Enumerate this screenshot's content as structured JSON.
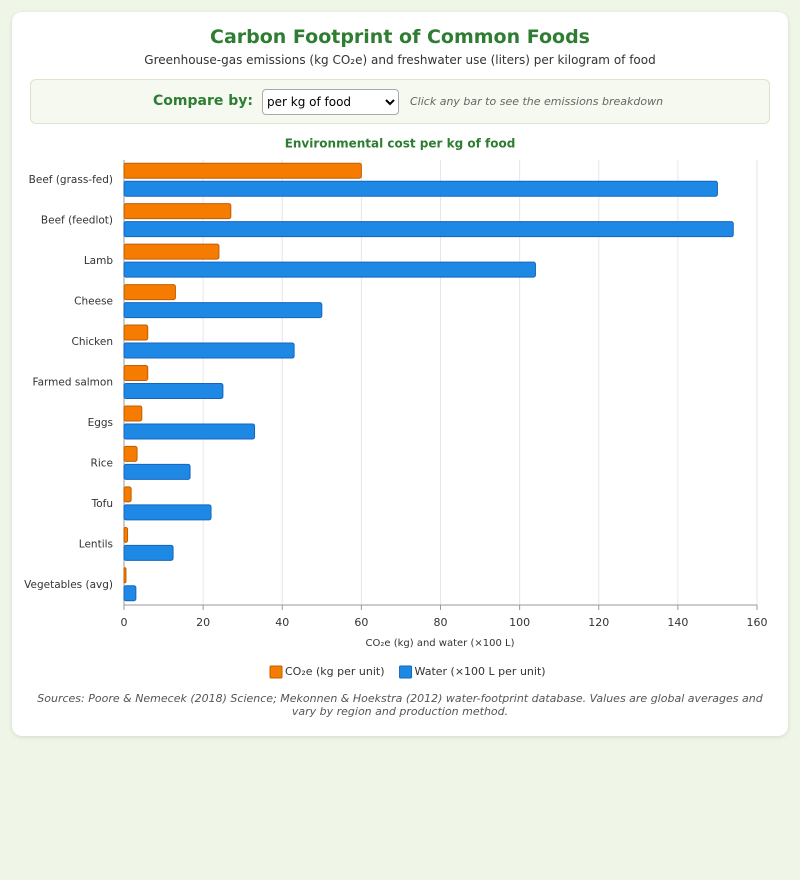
{
  "header": {
    "title": "Carbon Footprint of Common Foods",
    "subtitle": "Greenhouse-gas emissions (kg CO₂e) and freshwater use (liters) per kilogram of food"
  },
  "controls": {
    "label": "Compare by:",
    "selected": "per kg of food",
    "hint": "Click any bar to see the emissions breakdown"
  },
  "chart_data": {
    "type": "hbar",
    "title": "Environmental cost per kg of food",
    "categories": [
      "Beef (grass-fed)",
      "Beef (feedlot)",
      "Lamb",
      "Cheese",
      "Chicken",
      "Farmed salmon",
      "Eggs",
      "Rice",
      "Tofu",
      "Lentils",
      "Vegetables (avg)"
    ],
    "series": [
      {
        "name": "CO₂e (kg per unit)",
        "color": "#f57c00",
        "values": [
          60,
          27,
          24,
          13,
          6,
          6,
          4.5,
          3.3,
          1.8,
          0.9,
          0.5
        ]
      },
      {
        "name": "Water (×100 L per unit)",
        "color": "#1e88e5",
        "values": [
          150,
          154,
          104,
          50,
          43,
          25,
          33,
          16.7,
          22,
          12.4,
          3
        ]
      }
    ],
    "xlabel": "CO₂e (kg) and water (×100 L)",
    "xlim": [
      0,
      160
    ],
    "xticks": [
      0,
      20,
      40,
      60,
      80,
      100,
      120,
      140,
      160
    ],
    "grid": true,
    "legend": "bottom"
  },
  "sources": "Sources: Poore & Nemecek (2018) Science; Mekonnen & Hoekstra (2012) water-footprint database. Values are global averages and vary by region and production method."
}
